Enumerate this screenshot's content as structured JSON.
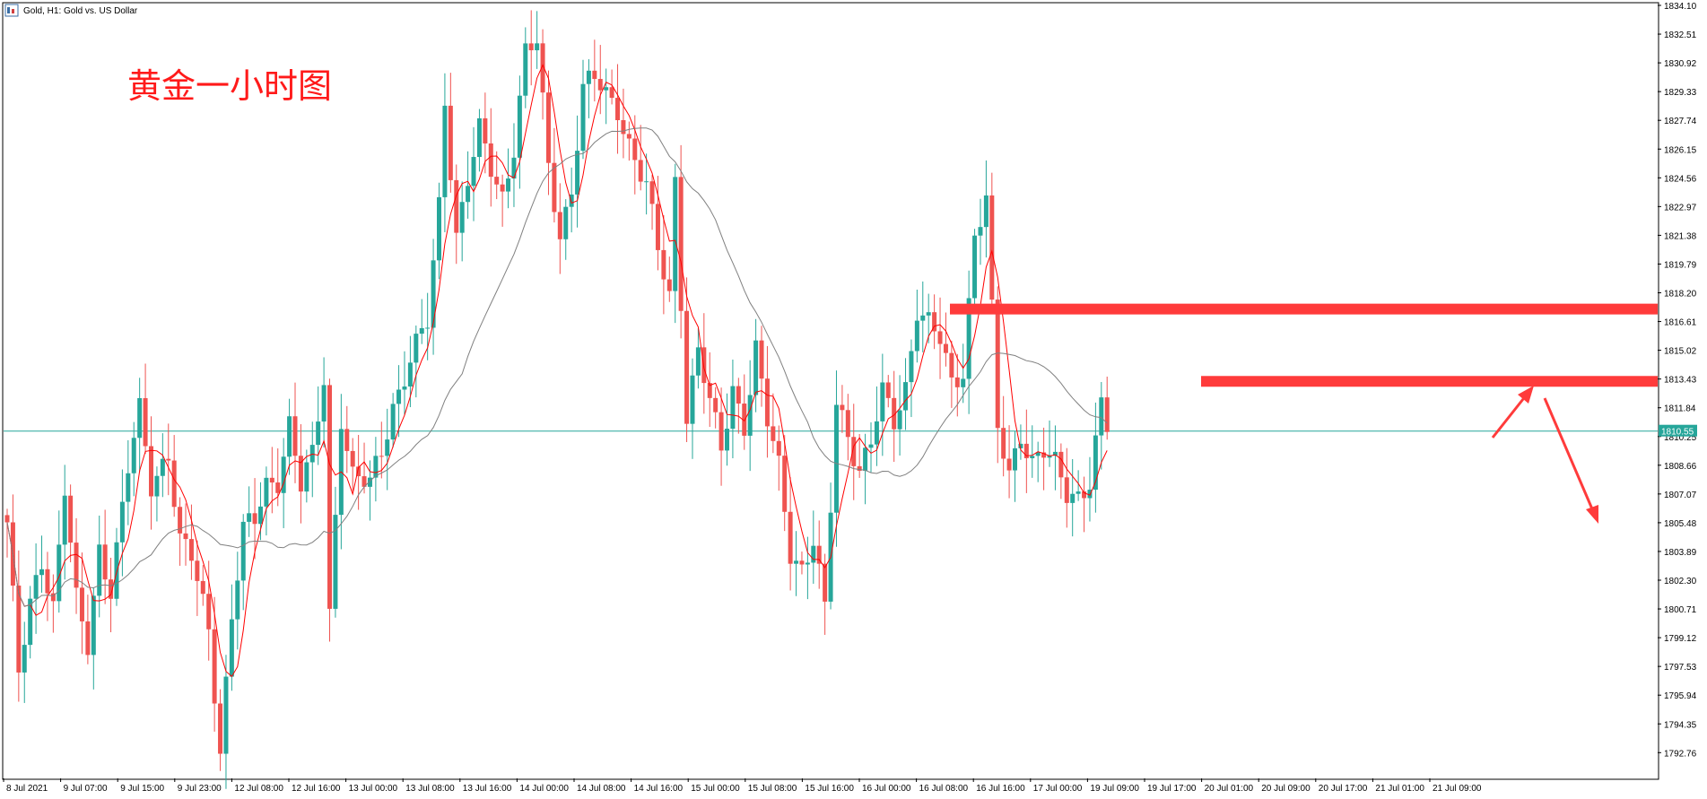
{
  "header": {
    "symbol_text": "Gold, H1:  Gold vs. US Dollar",
    "icon": "chart-window-icon"
  },
  "annotation": {
    "title": "黄金一小时图",
    "color": "#ff1a1a"
  },
  "colors": {
    "bull": "#26a69a",
    "bear": "#ef5350",
    "fast_ma": "#ff0000",
    "slow_ma": "#808080",
    "annotation": "#ff3b3b",
    "price_line": "#26a69a"
  },
  "current_price": {
    "value": 1810.55,
    "label": "1810.55"
  },
  "chart_data": {
    "type": "candlestick",
    "symbol": "Gold",
    "timeframe": "H1",
    "ylim": [
      1791.2,
      1834.1
    ],
    "y_ticks": [
      "1834.10",
      "1832.51",
      "1830.92",
      "1829.33",
      "1827.74",
      "1826.15",
      "1824.56",
      "1822.97",
      "1821.38",
      "1819.79",
      "1818.20",
      "1816.61",
      "1815.02",
      "1813.43",
      "1811.84",
      "1810.25",
      "1808.66",
      "1807.07",
      "1805.48",
      "1803.89",
      "1802.30",
      "1800.71",
      "1799.12",
      "1797.53",
      "1795.94",
      "1794.35",
      "1792.76"
    ],
    "x_tick_labels": [
      "8 Jul 2021",
      "9 Jul 07:00",
      "9 Jul 15:00",
      "9 Jul 23:00",
      "12 Jul 08:00",
      "12 Jul 16:00",
      "13 Jul 00:00",
      "13 Jul 08:00",
      "13 Jul 16:00",
      "14 Jul 00:00",
      "14 Jul 08:00",
      "14 Jul 16:00",
      "15 Jul 00:00",
      "15 Jul 08:00",
      "15 Jul 16:00",
      "16 Jul 00:00",
      "16 Jul 08:00",
      "16 Jul 16:00",
      "17 Jul 00:00",
      "19 Jul 09:00",
      "19 Jul 17:00",
      "20 Jul 01:00",
      "20 Jul 09:00",
      "20 Jul 17:00",
      "21 Jul 01:00",
      "21 Jul 09:00"
    ],
    "keyframes": [
      [
        0,
        1805.5
      ],
      [
        2,
        1797.0
      ],
      [
        4,
        1800.8
      ],
      [
        6,
        1803.5
      ],
      [
        8,
        1801.0
      ],
      [
        10,
        1807.5
      ],
      [
        12,
        1801.0
      ],
      [
        14,
        1798.5
      ],
      [
        16,
        1804.0
      ],
      [
        18,
        1802.0
      ],
      [
        21,
        1808.5
      ],
      [
        23,
        1811.5
      ],
      [
        25,
        1807.5
      ],
      [
        28,
        1809.5
      ],
      [
        30,
        1804.5
      ],
      [
        32,
        1803.5
      ],
      [
        35,
        1799.5
      ],
      [
        37,
        1793.0
      ],
      [
        39,
        1800.5
      ],
      [
        41,
        1805.0
      ],
      [
        43,
        1805.5
      ],
      [
        45,
        1807.5
      ],
      [
        47,
        1808.0
      ],
      [
        49,
        1811.0
      ],
      [
        51,
        1807.5
      ],
      [
        53,
        1809.0
      ],
      [
        55,
        1813.5
      ],
      [
        56,
        1800.5
      ],
      [
        58,
        1811.5
      ],
      [
        60,
        1808.0
      ],
      [
        63,
        1807.5
      ],
      [
        65,
        1809.5
      ],
      [
        67,
        1812.0
      ],
      [
        70,
        1814.5
      ],
      [
        73,
        1816.5
      ],
      [
        75,
        1823.0
      ],
      [
        76,
        1829.0
      ],
      [
        78,
        1821.5
      ],
      [
        80,
        1824.5
      ],
      [
        82,
        1827.0
      ],
      [
        84,
        1825.0
      ],
      [
        86,
        1823.5
      ],
      [
        88,
        1826.5
      ],
      [
        90,
        1831.5
      ],
      [
        92,
        1832.0
      ],
      [
        94,
        1825.0
      ],
      [
        96,
        1821.5
      ],
      [
        98,
        1824.0
      ],
      [
        100,
        1829.5
      ],
      [
        102,
        1830.0
      ],
      [
        104,
        1829.0
      ],
      [
        106,
        1828.5
      ],
      [
        108,
        1826.5
      ],
      [
        111,
        1824.0
      ],
      [
        113,
        1820.5
      ],
      [
        115,
        1818.0
      ],
      [
        116,
        1824.5
      ],
      [
        118,
        1811.5
      ],
      [
        120,
        1815.0
      ],
      [
        122,
        1812.0
      ],
      [
        124,
        1809.5
      ],
      [
        126,
        1813.0
      ],
      [
        128,
        1811.0
      ],
      [
        130,
        1815.0
      ],
      [
        132,
        1811.0
      ],
      [
        134,
        1808.5
      ],
      [
        136,
        1804.0
      ],
      [
        138,
        1803.0
      ],
      [
        140,
        1804.5
      ],
      [
        142,
        1800.5
      ],
      [
        144,
        1812.0
      ],
      [
        146,
        1810.5
      ],
      [
        148,
        1808.5
      ],
      [
        150,
        1810.0
      ],
      [
        152,
        1812.5
      ],
      [
        154,
        1811.0
      ],
      [
        156,
        1813.0
      ],
      [
        158,
        1817.5
      ],
      [
        160,
        1816.5
      ],
      [
        162,
        1815.5
      ],
      [
        164,
        1813.0
      ],
      [
        166,
        1814.0
      ],
      [
        168,
        1821.5
      ],
      [
        170,
        1823.5
      ],
      [
        172,
        1810.5
      ],
      [
        174,
        1808.0
      ],
      [
        176,
        1810.5
      ],
      [
        178,
        1809.0
      ],
      [
        180,
        1809.5
      ],
      [
        182,
        1808.5
      ],
      [
        184,
        1807.0
      ],
      [
        186,
        1807.0
      ],
      [
        188,
        1808.0
      ],
      [
        190,
        1812.0
      ],
      [
        191,
        1810.5
      ]
    ],
    "series": [
      {
        "name": "fast-ma",
        "period": 5,
        "color": "#ff0000"
      },
      {
        "name": "slow-ma",
        "period": 24,
        "color": "#808080"
      }
    ],
    "overlays": {
      "horizontal_levels": [
        1817.3,
        1813.3
      ],
      "arrows": [
        "up-right",
        "down-right"
      ]
    }
  }
}
